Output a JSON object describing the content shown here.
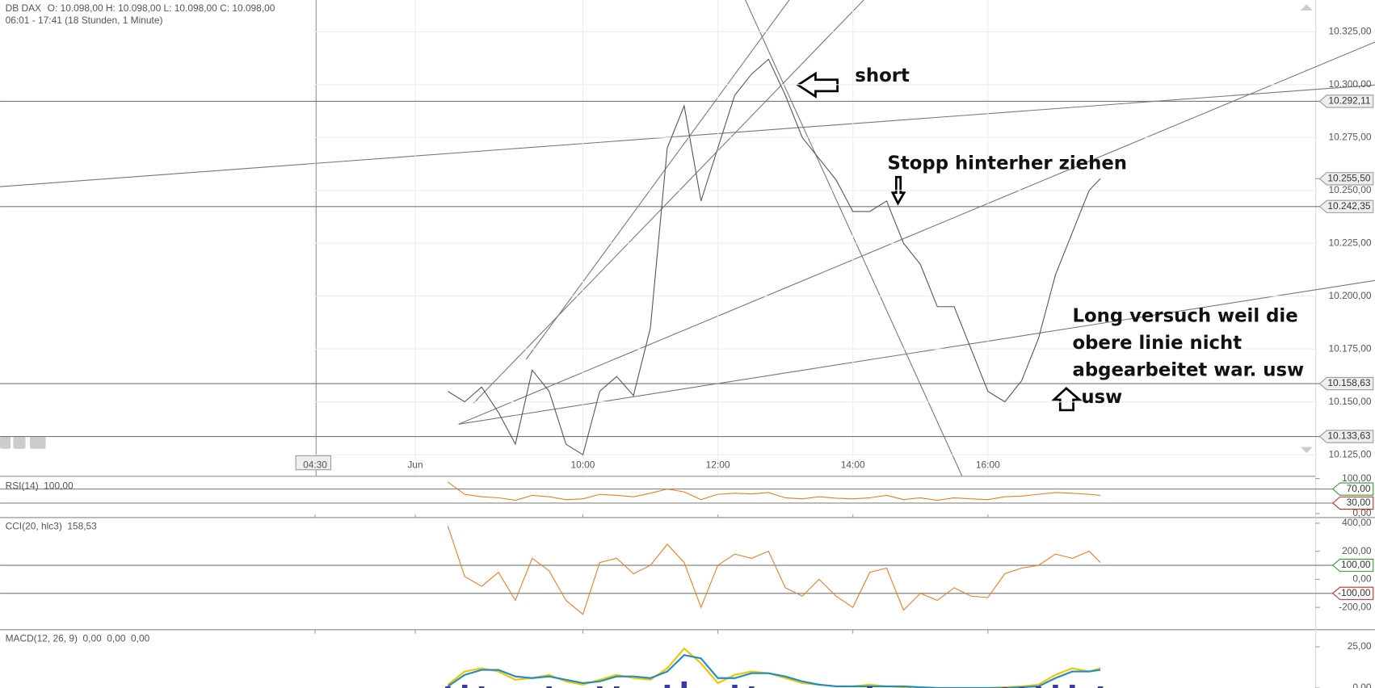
{
  "chart_data": [
    {
      "type": "line",
      "title": "DB DAX",
      "header": "O: 10.098,00  H: 10.098,00  L: 10.098,00  C: 10.098,00",
      "subtitle": "06:01 - 17:41 (18 Stunden, 1 Minute)",
      "color": "#555555",
      "x": [
        480,
        495,
        510,
        525,
        540,
        555,
        570,
        585,
        600,
        615,
        630,
        645,
        660,
        675,
        690,
        705,
        720,
        735,
        750,
        765,
        780,
        795,
        810,
        825,
        840,
        855,
        870,
        885,
        900,
        915,
        930,
        945,
        960,
        975,
        990,
        1005,
        1020,
        1035,
        1050,
        1060
      ],
      "values": [
        10155,
        10150,
        10157,
        10145,
        10130,
        10165,
        10155,
        10130,
        10125,
        10155,
        10162,
        10153,
        10185,
        10270,
        10290,
        10245,
        10270,
        10295,
        10305,
        10312,
        10295,
        10275,
        10265,
        10255,
        10240,
        10240,
        10245,
        10225,
        10215,
        10195,
        10195,
        10175,
        10155,
        10150,
        10160,
        10180,
        10210,
        10230,
        10250,
        10255.5
      ],
      "xlim": [
        82,
        1251
      ],
      "ylim": [
        10115,
        10340
      ],
      "xticks": [
        {
          "value": 362,
          "label": "04:30"
        },
        {
          "value": 451,
          "label": "Jun"
        },
        {
          "value": 600,
          "label": "10:00"
        },
        {
          "value": 720,
          "label": "12:00"
        },
        {
          "value": 840,
          "label": "14:00"
        },
        {
          "value": 960,
          "label": "16:00"
        }
      ],
      "yticks": [
        {
          "value": 10125,
          "label": "10.125,00"
        },
        {
          "value": 10150,
          "label": "10.150,00"
        },
        {
          "value": 10175,
          "label": "10.175,00"
        },
        {
          "value": 10200,
          "label": "10.200,00"
        },
        {
          "value": 10225,
          "label": "10.225,00"
        },
        {
          "value": 10250,
          "label": "10.250,00"
        },
        {
          "value": 10275,
          "label": "10.275,00"
        },
        {
          "value": 10300,
          "label": "10.300,00"
        },
        {
          "value": 10325,
          "label": "10.325,00"
        }
      ],
      "levels": [
        {
          "value": 10292.11,
          "label": "10.292,11"
        },
        {
          "value": 10255.5,
          "label": "10.255,50"
        },
        {
          "value": 10242.35,
          "label": "10.242,35"
        },
        {
          "value": 10158.63,
          "label": "10.158,63"
        },
        {
          "value": 10133.63,
          "label": "10.133,63"
        }
      ],
      "annotations": [
        [
          "short"
        ],
        [
          "Stopp hinterher ziehen"
        ],
        [
          "Long versuch weil die",
          "obere linie nicht",
          "abgearbeitet war. usw",
          "usw"
        ]
      ],
      "grid": true
    },
    {
      "type": "line",
      "title": "RSI(14)",
      "value_text": "100,00",
      "color": "#f07b1e",
      "x": [
        480,
        495,
        510,
        525,
        540,
        555,
        570,
        585,
        600,
        615,
        630,
        645,
        660,
        675,
        690,
        705,
        720,
        735,
        750,
        765,
        780,
        795,
        810,
        825,
        840,
        855,
        870,
        885,
        900,
        915,
        930,
        945,
        960,
        975,
        990,
        1005,
        1020,
        1035,
        1050,
        1060
      ],
      "values": [
        90,
        55,
        48,
        45,
        38,
        52,
        48,
        40,
        42,
        55,
        52,
        48,
        58,
        70,
        62,
        40,
        55,
        58,
        56,
        60,
        45,
        42,
        48,
        44,
        42,
        45,
        52,
        40,
        45,
        38,
        45,
        42,
        40,
        48,
        50,
        55,
        60,
        58,
        55,
        52
      ],
      "xlim": [
        82,
        1251
      ],
      "ylim": [
        0,
        100
      ],
      "yticks": [
        {
          "value": 0,
          "label": "0,00"
        },
        {
          "value": 100,
          "label": "100,00"
        }
      ],
      "levels": [
        {
          "value": 70,
          "label": "70,00",
          "color": "#2a9d2a"
        },
        {
          "value": 30,
          "label": "30,00",
          "color": "#c62828"
        }
      ]
    },
    {
      "type": "line",
      "title": "CCI(20, hlc3)",
      "value_text": "158,53",
      "color": "#f07b1e",
      "x": [
        480,
        495,
        510,
        525,
        540,
        555,
        570,
        585,
        600,
        615,
        630,
        645,
        660,
        675,
        690,
        705,
        720,
        735,
        750,
        765,
        780,
        795,
        810,
        825,
        840,
        855,
        870,
        885,
        900,
        915,
        930,
        945,
        960,
        975,
        990,
        1005,
        1020,
        1035,
        1050,
        1060
      ],
      "values": [
        380,
        20,
        -50,
        50,
        -150,
        150,
        60,
        -150,
        -250,
        120,
        150,
        40,
        100,
        250,
        120,
        -200,
        100,
        180,
        150,
        200,
        -60,
        -120,
        0,
        -120,
        -200,
        50,
        80,
        -220,
        -100,
        -150,
        -60,
        -120,
        -130,
        40,
        80,
        100,
        180,
        150,
        200,
        120
      ],
      "xlim": [
        82,
        1251
      ],
      "ylim": [
        -356,
        431
      ],
      "yticks": [
        {
          "value": 400,
          "label": "400,00"
        },
        {
          "value": 200,
          "label": "200,00"
        },
        {
          "value": 0,
          "label": "0,00"
        },
        {
          "value": -200,
          "label": "-200,00"
        }
      ],
      "levels": [
        {
          "value": 100,
          "label": "100,00",
          "color": "#2a9d2a"
        },
        {
          "value": -100,
          "label": "-100,00",
          "color": "#c62828"
        }
      ]
    },
    {
      "type": "line",
      "title": "MACD(12, 26, 9)",
      "x": [
        480,
        495,
        510,
        525,
        540,
        555,
        570,
        585,
        600,
        615,
        630,
        645,
        660,
        675,
        690,
        705,
        720,
        735,
        750,
        765,
        780,
        795,
        810,
        825,
        840,
        855,
        870,
        885,
        900,
        915,
        930,
        945,
        960,
        975,
        990,
        1005,
        1020,
        1035,
        1050,
        1060
      ],
      "series": [
        {
          "name": "0,00",
          "color": "#f2c500",
          "values": [
            2,
            10,
            12,
            10,
            5,
            6,
            8,
            4,
            2,
            5,
            8,
            6,
            5,
            12,
            24,
            15,
            3,
            8,
            10,
            9,
            6,
            3,
            2,
            1,
            1,
            2,
            1,
            0.5,
            0,
            0,
            0,
            0,
            0,
            0.5,
            1,
            2,
            8,
            12,
            10,
            12
          ]
        },
        {
          "name": "0,00",
          "color": "#1e8fc5",
          "values": [
            1,
            8,
            11,
            11,
            7,
            6,
            7,
            5,
            3,
            4,
            7,
            7,
            6,
            10,
            20,
            18,
            6,
            6,
            9,
            9,
            7,
            4,
            2,
            1,
            1,
            1,
            1,
            1,
            0.5,
            0,
            0,
            0,
            0,
            0,
            0.5,
            1,
            6,
            10,
            10,
            11
          ]
        },
        {
          "name": "0,00",
          "color": "#3b3b9e",
          "values": [
            1,
            2,
            1,
            -1,
            -2,
            0,
            1,
            -1,
            -1,
            1,
            1,
            -1,
            -1,
            2,
            4,
            -3,
            -3,
            2,
            1,
            0,
            -1,
            -1,
            0,
            0,
            0,
            1,
            0,
            -0.5,
            -0.5,
            0,
            0,
            0,
            0,
            0.5,
            0.5,
            1,
            2,
            2,
            0,
            1
          ]
        }
      ],
      "xlim": [
        82,
        1251
      ],
      "ylim": [
        0,
        34.6
      ],
      "yticks": [
        {
          "value": 0,
          "label": "0,00"
        },
        {
          "value": 25,
          "label": "25,00"
        }
      ]
    }
  ]
}
